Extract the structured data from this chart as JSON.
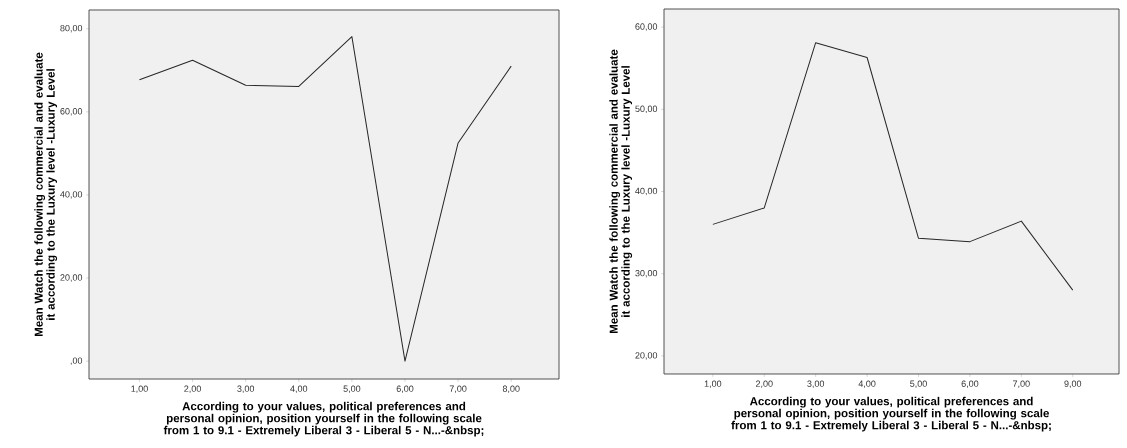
{
  "chart_data": [
    {
      "type": "line",
      "categories": [
        "1,00",
        "2,00",
        "3,00",
        "4,00",
        "5,00",
        "6,00",
        "7,00",
        "8,00"
      ],
      "values": [
        67.7,
        72.4,
        66.4,
        66.1,
        78.1,
        0,
        52.5,
        71.0
      ],
      "color": "#262626",
      "xlabel": "According to your values, political preferences and personal opinion, position yourself in the following scale from 1 to 9.1 - Extremely Liberal 3 - Liberal 5 - N...-&nbsp;",
      "ylabel": "Mean Watch the following commercial and evaluate it according to the Luxury level -Luxury Level",
      "ylim": [
        -4.3,
        84.5
      ],
      "yticks": [
        {
          "value": 0,
          "label": ",00"
        },
        {
          "value": 20,
          "label": "20,00"
        },
        {
          "value": 40,
          "label": "40,00"
        },
        {
          "value": 60,
          "label": "60,00"
        },
        {
          "value": 80,
          "label": "80,00"
        }
      ],
      "grid": false
    },
    {
      "type": "line",
      "categories": [
        "1,00",
        "2,00",
        "3,00",
        "4,00",
        "5,00",
        "6,00",
        "7,00",
        "9,00"
      ],
      "values": [
        36.0,
        38.0,
        58.1,
        56.3,
        34.3,
        33.9,
        36.4,
        28.0
      ],
      "color": "#262626",
      "xlabel": "According to your values, political preferences and personal opinion, position yourself in the following scale from 1 to 9.1 - Extremely Liberal 3 - Liberal 5 - N...-&nbsp;",
      "ylabel": "Mean Watch the following commercial and evaluate it according to the Luxury level -Luxury Level",
      "ylim": [
        17.8,
        62.2
      ],
      "yticks": [
        {
          "value": 20,
          "label": "20,00"
        },
        {
          "value": 30,
          "label": "30,00"
        },
        {
          "value": 40,
          "label": "40,00"
        },
        {
          "value": 50,
          "label": "50,00"
        },
        {
          "value": 60,
          "label": "60,00"
        }
      ],
      "grid": false
    }
  ]
}
